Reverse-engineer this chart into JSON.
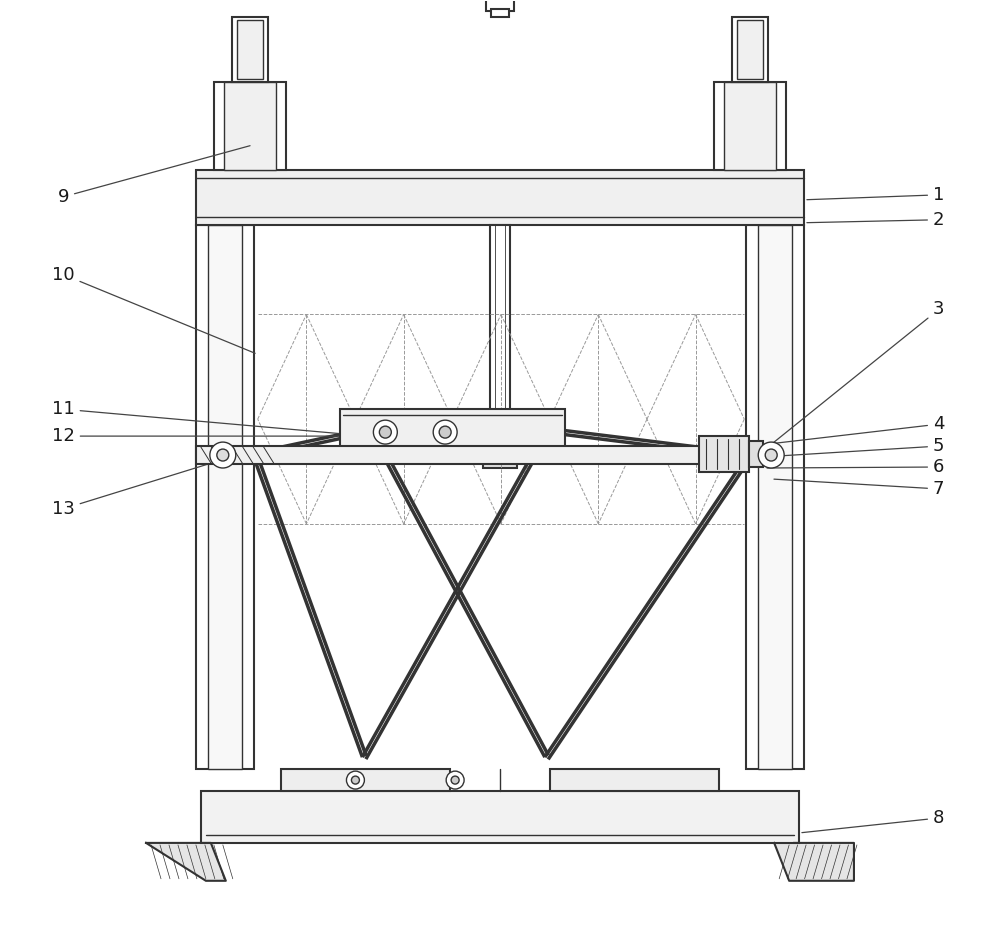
{
  "bg_color": "#ffffff",
  "line_color": "#333333",
  "dash_color": "#999999",
  "figure_width": 10.0,
  "figure_height": 9.44
}
